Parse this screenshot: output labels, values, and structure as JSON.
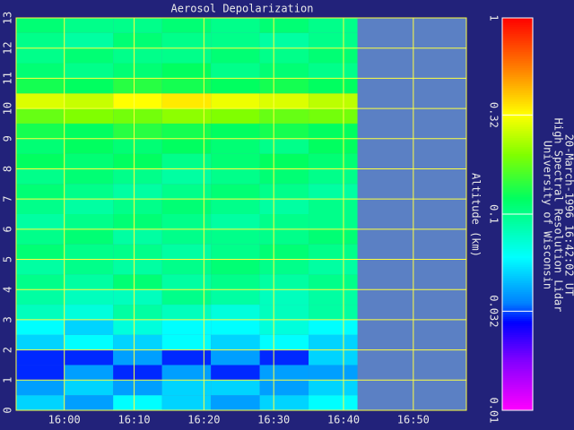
{
  "chart_data": {
    "type": "heatmap",
    "title": "Aerosol Depolarization",
    "ylabel": "Altitude (km)",
    "notes": [
      "University of Wisconsin",
      "High Spectral Resolution Lidar",
      "20-March-1996 16:42:02 UT"
    ],
    "xlim": [
      953.1,
      1017.6
    ],
    "xticks": [
      {
        "value": 960,
        "label": "16:00"
      },
      {
        "value": 970,
        "label": "16:10"
      },
      {
        "value": 980,
        "label": "16:20"
      },
      {
        "value": 990,
        "label": "16:30"
      },
      {
        "value": 1000,
        "label": "16:40"
      },
      {
        "value": 1010,
        "label": "16:50"
      }
    ],
    "ylim": [
      0,
      13
    ],
    "yticks": [
      0,
      1,
      2,
      3,
      4,
      5,
      6,
      7,
      8,
      9,
      10,
      11,
      12,
      13
    ],
    "xbins": [
      953.1,
      960,
      967,
      974,
      981,
      988,
      995,
      1002
    ],
    "ybins": [
      0,
      0.5,
      1,
      1.5,
      2,
      2.5,
      3,
      3.5,
      4,
      4.5,
      5,
      5.5,
      6,
      6.5,
      7,
      7.5,
      8,
      8.5,
      9,
      9.5,
      10,
      10.5,
      11,
      11.5,
      12,
      12.5,
      13
    ],
    "values": [
      [
        0.05,
        0.04,
        0.06,
        0.05,
        0.04,
        0.05,
        0.06
      ],
      [
        0.04,
        0.05,
        0.04,
        0.05,
        0.05,
        0.04,
        0.05
      ],
      [
        0.03,
        0.04,
        0.03,
        0.04,
        0.03,
        0.04,
        0.04
      ],
      [
        0.03,
        0.03,
        0.04,
        0.03,
        0.04,
        0.03,
        0.05
      ],
      [
        0.05,
        0.06,
        0.05,
        0.06,
        0.05,
        0.06,
        0.05
      ],
      [
        0.06,
        0.05,
        0.07,
        0.06,
        0.06,
        0.07,
        0.06
      ],
      [
        0.08,
        0.07,
        0.09,
        0.08,
        0.07,
        0.08,
        0.09
      ],
      [
        0.09,
        0.08,
        0.08,
        0.1,
        0.09,
        0.08,
        0.09
      ],
      [
        0.1,
        0.09,
        0.11,
        0.09,
        0.1,
        0.09,
        0.1
      ],
      [
        0.09,
        0.1,
        0.09,
        0.1,
        0.11,
        0.1,
        0.09
      ],
      [
        0.11,
        0.1,
        0.1,
        0.09,
        0.1,
        0.11,
        0.1
      ],
      [
        0.1,
        0.11,
        0.09,
        0.1,
        0.1,
        0.1,
        0.11
      ],
      [
        0.09,
        0.1,
        0.11,
        0.1,
        0.09,
        0.1,
        0.1
      ],
      [
        0.1,
        0.09,
        0.1,
        0.11,
        0.1,
        0.09,
        0.1
      ],
      [
        0.11,
        0.1,
        0.09,
        0.1,
        0.11,
        0.1,
        0.09
      ],
      [
        0.1,
        0.11,
        0.1,
        0.09,
        0.1,
        0.11,
        0.1
      ],
      [
        0.12,
        0.11,
        0.12,
        0.1,
        0.11,
        0.12,
        0.11
      ],
      [
        0.11,
        0.12,
        0.11,
        0.12,
        0.11,
        0.1,
        0.12
      ],
      [
        0.13,
        0.12,
        0.14,
        0.13,
        0.12,
        0.13,
        0.12
      ],
      [
        0.18,
        0.2,
        0.19,
        0.21,
        0.2,
        0.18,
        0.19
      ],
      [
        0.28,
        0.26,
        0.32,
        0.35,
        0.3,
        0.28,
        0.25
      ],
      [
        0.13,
        0.12,
        0.14,
        0.13,
        0.12,
        0.13,
        0.12
      ],
      [
        0.11,
        0.1,
        0.11,
        0.12,
        0.1,
        0.11,
        0.1
      ],
      [
        0.1,
        0.11,
        0.1,
        0.1,
        0.11,
        0.1,
        0.11
      ],
      [
        0.1,
        0.09,
        0.11,
        0.1,
        0.1,
        0.09,
        0.1
      ],
      [
        0.11,
        0.1,
        0.1,
        0.11,
        0.1,
        0.11,
        0.1
      ]
    ],
    "clim": [
      0.01,
      1
    ],
    "cticks": [
      0.01,
      0.032,
      0.1,
      0.32,
      1
    ],
    "colorscale": [
      [
        0.01,
        "#ff00ff"
      ],
      [
        0.018,
        "#8000ff"
      ],
      [
        0.028,
        "#0000ff"
      ],
      [
        0.035,
        "#0080ff"
      ],
      [
        0.06,
        "#00ffff"
      ],
      [
        0.12,
        "#00ff60"
      ],
      [
        0.2,
        "#80ff00"
      ],
      [
        0.32,
        "#ffff00"
      ],
      [
        0.55,
        "#ff8000"
      ],
      [
        1,
        "#ff0000"
      ]
    ],
    "grid": true
  }
}
